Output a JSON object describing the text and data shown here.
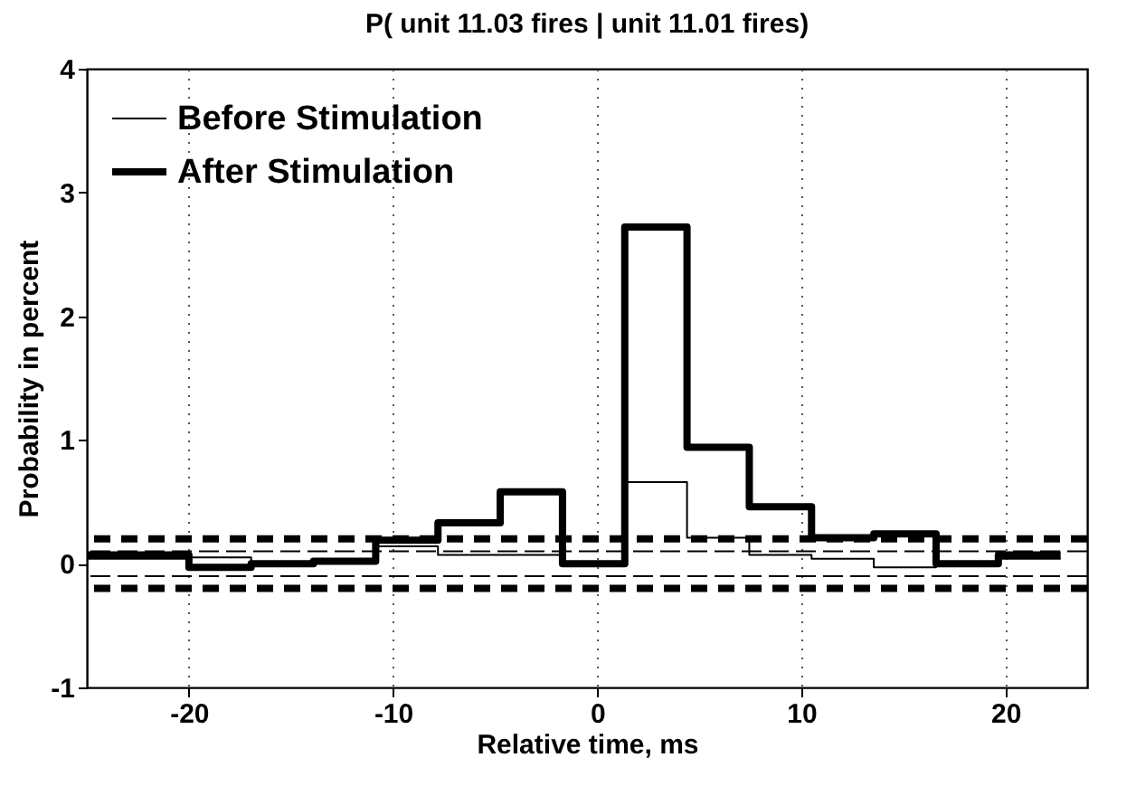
{
  "chart_data": {
    "type": "step",
    "title": "P( unit 11.03 fires | unit 11.01 fires)",
    "xlabel": "Relative time, ms",
    "ylabel": "Probability in percent",
    "xlim": [
      -25,
      24
    ],
    "xticks": [
      -20,
      -10,
      0,
      10,
      20
    ],
    "ylim": [
      -1,
      4
    ],
    "yticks": [
      -1,
      0,
      1,
      2,
      3,
      4
    ],
    "grid": "x",
    "legend": "top left",
    "line_style": "solid",
    "series": [
      {
        "name": "Before Stimulation",
        "color": "#000000",
        "x": [
          -25,
          -20,
          -16.95,
          -13.9,
          -10.85,
          -7.8,
          -4.75,
          -1.7,
          1.35,
          4.4,
          7.45,
          10.5,
          13.55,
          16.6,
          19.65,
          22.7
        ],
        "values": [
          0.04,
          0.05,
          0,
          0.02,
          0.14,
          0.07,
          0.07,
          0,
          0.66,
          0.21,
          0.07,
          0.04,
          -0.03,
          0,
          0.04,
          0.04
        ]
      },
      {
        "name": "After Stimulation",
        "color": "#000000",
        "x": [
          -25,
          -20,
          -16.95,
          -13.9,
          -10.85,
          -7.8,
          -4.75,
          -1.7,
          1.35,
          4.4,
          7.45,
          10.5,
          13.55,
          16.6,
          19.65,
          22.7
        ],
        "values": [
          0.07,
          -0.03,
          0,
          0.02,
          0.19,
          0.33,
          0.58,
          0,
          2.72,
          0.94,
          0.46,
          0.21,
          0.24,
          0,
          0.07,
          0.07
        ]
      }
    ],
    "ref_lines": [
      {
        "axis": "y",
        "value": 0.2,
        "line_style": "dashed"
      },
      {
        "axis": "y",
        "value": 0.1,
        "line_style": "dashed"
      },
      {
        "axis": "y",
        "value": -0.1,
        "line_style": "dashed"
      },
      {
        "axis": "y",
        "value": -0.2,
        "line_style": "dashed"
      }
    ]
  }
}
